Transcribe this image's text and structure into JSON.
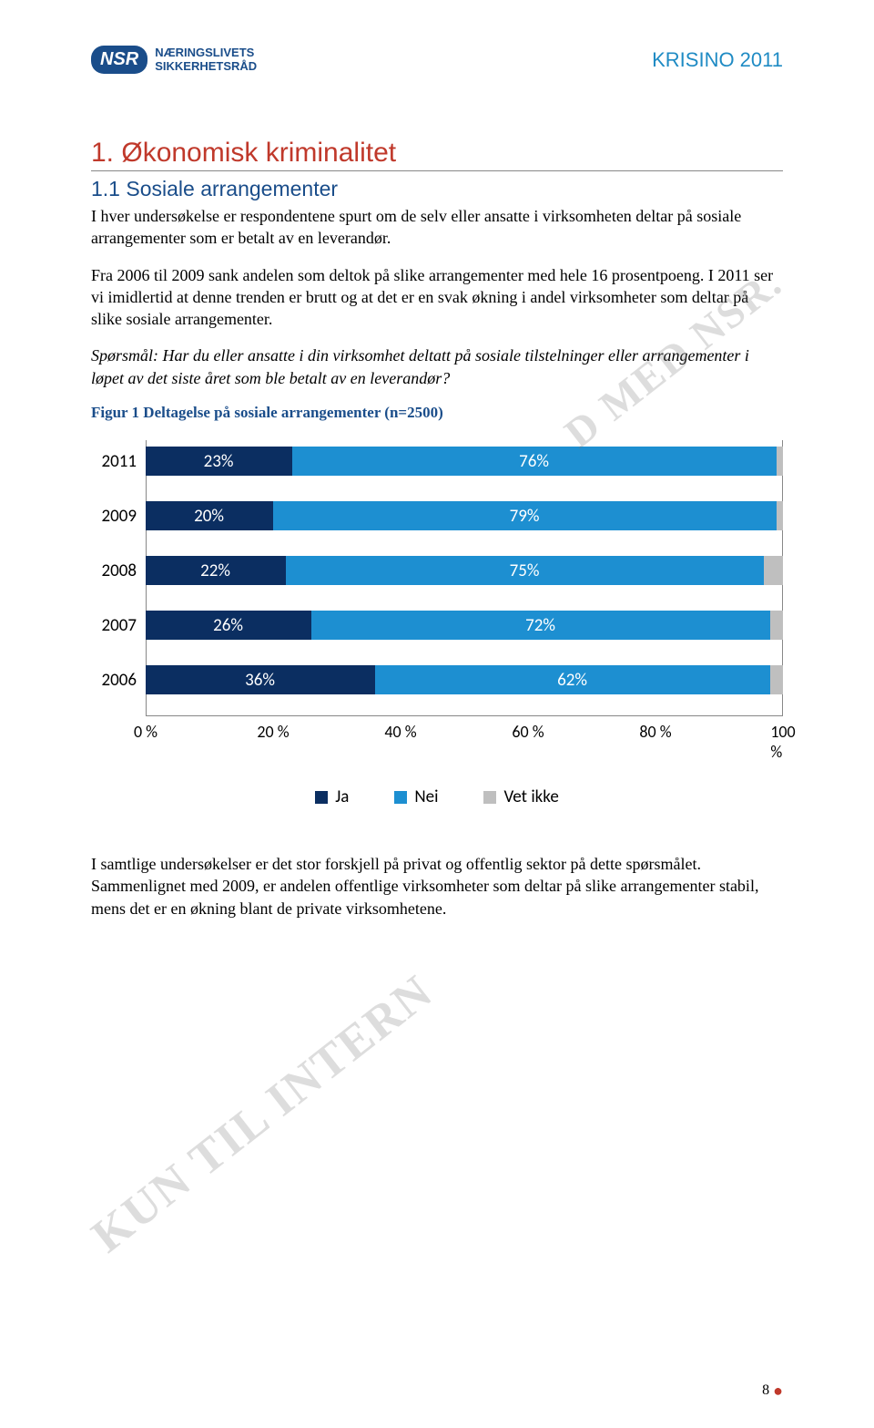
{
  "header": {
    "logo_abbrev": "NSR",
    "logo_line1": "NÆRINGSLIVETS",
    "logo_line2": "SIKKERHETSRÅD",
    "doc_title": "KRISINO 2011"
  },
  "section": {
    "h1": "1. Økonomisk kriminalitet",
    "h2": "1.1 Sosiale arrangementer",
    "p1": "I hver undersøkelse er respondentene spurt om de selv eller ansatte i virksomheten deltar på sosiale arrangementer som er betalt av en leverandør.",
    "p2": "Fra 2006 til 2009 sank andelen som deltok på slike arrangementer med hele 16 prosentpoeng. I 2011 ser vi imidlertid at denne trenden er brutt og at det er en svak økning i andel virksomheter som deltar på slike sosiale arrangementer.",
    "question": "Spørsmål: Har du eller ansatte i din virksomhet deltatt på sosiale tilstelninger eller arrangementer i løpet av det siste året som ble betalt av en leverandør?",
    "fig_title": "Figur 1 Deltagelse på sosiale arrangementer (n=2500)",
    "p3": "I samtlige undersøkelser er det stor forskjell på privat og offentlig sektor på dette spørsmålet. Sammenlignet med 2009, er andelen offentlige virksomheter som deltar på slike arrangementer stabil, mens det er en økning blant de private virksomhetene."
  },
  "chart": {
    "type": "stacked-horizontal-bar",
    "categories": [
      "2011",
      "2009",
      "2008",
      "2007",
      "2006"
    ],
    "series": {
      "ja": [
        23,
        20,
        22,
        26,
        36
      ],
      "nei": [
        76,
        79,
        75,
        72,
        62
      ],
      "vet": [
        1,
        1,
        3,
        2,
        2
      ]
    },
    "labels": {
      "ja": [
        "23%",
        "20%",
        "22%",
        "26%",
        "36%"
      ],
      "nei": [
        "76%",
        "79%",
        "75%",
        "72%",
        "62%"
      ],
      "vet": [
        "",
        "",
        "",
        "",
        ""
      ]
    },
    "colors": {
      "ja": "#0b2e61",
      "nei": "#1d8fd1",
      "vet": "#bfbfbf"
    },
    "x_ticks": [
      "0 %",
      "20 %",
      "40 %",
      "60 %",
      "80 %",
      "100 %"
    ],
    "x_tick_pos": [
      0,
      20,
      40,
      60,
      80,
      100
    ],
    "legend": {
      "ja": "Ja",
      "nei": "Nei",
      "vet": "Vet ikke"
    }
  },
  "watermarks": {
    "wm1": "D MED NSR.",
    "wm2": "KUN TIL INTERN"
  },
  "footer": {
    "page": "8"
  }
}
